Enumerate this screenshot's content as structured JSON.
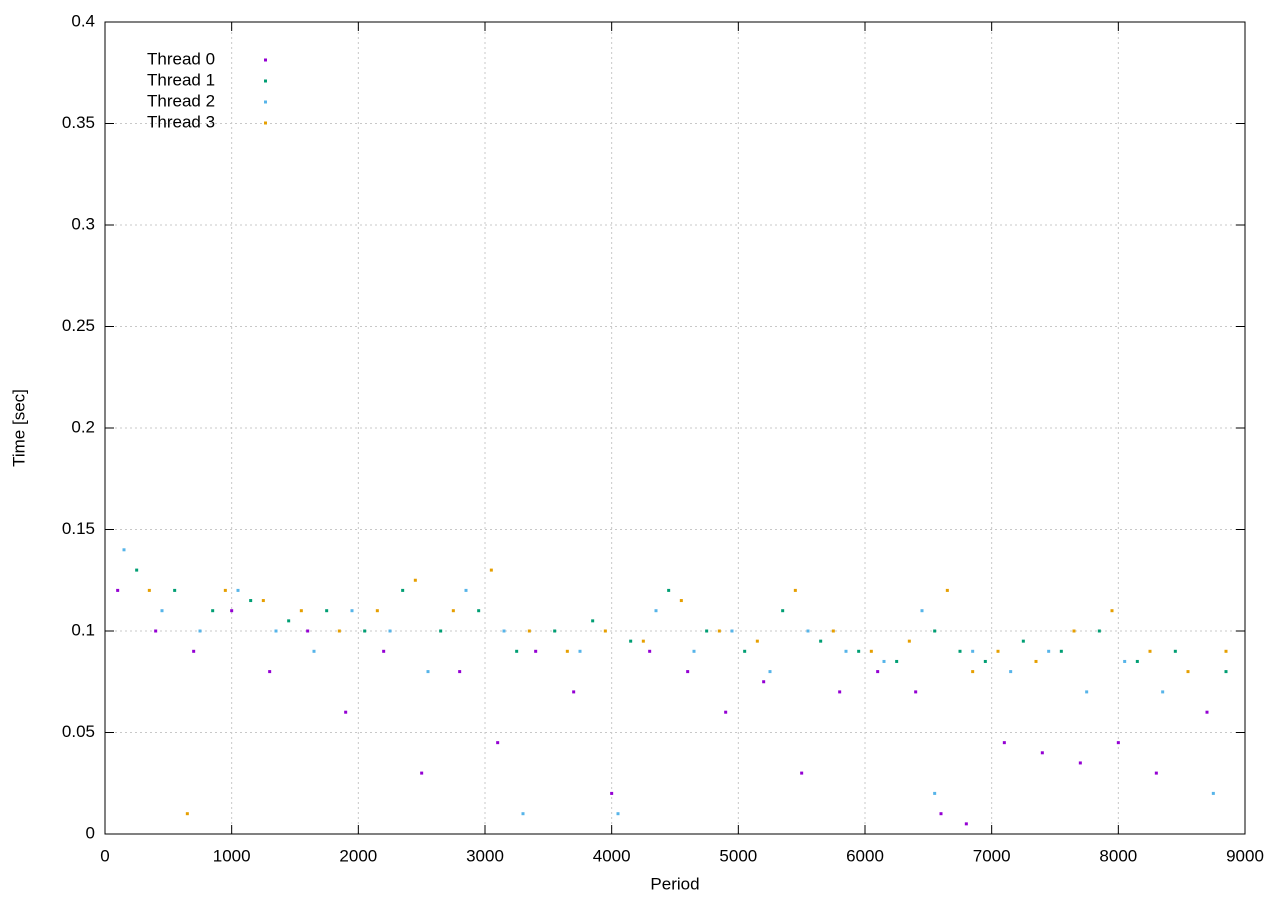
{
  "chart_data": {
    "type": "scatter",
    "x_label": "Period",
    "y_label": "Time [sec]",
    "xlim": [
      0,
      9000
    ],
    "xticks": [
      0,
      1000,
      2000,
      3000,
      4000,
      5000,
      6000,
      7000,
      8000,
      9000
    ],
    "ylim": [
      0,
      0.4
    ],
    "yticks": [
      0,
      0.05,
      0.1,
      0.15,
      0.2,
      0.25,
      0.3,
      0.35,
      0.4
    ],
    "grid": true,
    "legend": "upper-left",
    "series": [
      {
        "name": "Thread 0",
        "color": "#9400d3",
        "x": [
          100,
          400,
          700,
          1000,
          1300,
          1600,
          1900,
          2200,
          2500,
          2800,
          3100,
          3400,
          3700,
          4000,
          4300,
          4600,
          4900,
          5200,
          5500,
          5800,
          6100,
          6400,
          6600,
          6800,
          7100,
          7400,
          7700,
          8000,
          8300,
          8700
        ],
        "values": [
          0.12,
          0.1,
          0.09,
          0.11,
          0.08,
          0.1,
          0.06,
          0.09,
          0.03,
          0.08,
          0.045,
          0.09,
          0.07,
          0.02,
          0.09,
          0.08,
          0.06,
          0.075,
          0.03,
          0.07,
          0.08,
          0.07,
          0.01,
          0.005,
          0.045,
          0.04,
          0.035,
          0.045,
          0.03,
          0.06
        ]
      },
      {
        "name": "Thread 1",
        "color": "#009e73",
        "x": [
          250,
          550,
          850,
          1150,
          1450,
          1750,
          2050,
          2350,
          2650,
          2950,
          3250,
          3550,
          3850,
          4150,
          4450,
          4750,
          5050,
          5350,
          5650,
          5950,
          6250,
          6550,
          6750,
          6950,
          7250,
          7550,
          7850,
          8150,
          8450,
          8850
        ],
        "values": [
          0.13,
          0.12,
          0.11,
          0.115,
          0.105,
          0.11,
          0.1,
          0.12,
          0.1,
          0.11,
          0.09,
          0.1,
          0.105,
          0.095,
          0.12,
          0.1,
          0.09,
          0.11,
          0.095,
          0.09,
          0.085,
          0.1,
          0.09,
          0.085,
          0.095,
          0.09,
          0.1,
          0.085,
          0.09,
          0.08
        ]
      },
      {
        "name": "Thread 2",
        "color": "#56b4e9",
        "x": [
          150,
          450,
          750,
          1050,
          1350,
          1650,
          1950,
          2250,
          2550,
          2850,
          3150,
          3300,
          3750,
          4050,
          4350,
          4650,
          4950,
          5250,
          5550,
          5850,
          6150,
          6450,
          6550,
          6850,
          7150,
          7450,
          7750,
          8050,
          8350,
          8750
        ],
        "values": [
          0.14,
          0.11,
          0.1,
          0.12,
          0.1,
          0.09,
          0.11,
          0.1,
          0.08,
          0.12,
          0.1,
          0.01,
          0.09,
          0.01,
          0.11,
          0.09,
          0.1,
          0.08,
          0.1,
          0.09,
          0.085,
          0.11,
          0.02,
          0.09,
          0.08,
          0.09,
          0.07,
          0.085,
          0.07,
          0.02
        ]
      },
      {
        "name": "Thread 3",
        "color": "#e69f00",
        "x": [
          350,
          650,
          950,
          1250,
          1550,
          1850,
          2150,
          2450,
          2750,
          3050,
          3350,
          3650,
          3950,
          4250,
          4550,
          4850,
          5150,
          5450,
          5750,
          6050,
          6350,
          6650,
          6850,
          7050,
          7350,
          7650,
          7950,
          8250,
          8550,
          8850
        ],
        "values": [
          0.12,
          0.01,
          0.12,
          0.115,
          0.11,
          0.1,
          0.11,
          0.125,
          0.11,
          0.13,
          0.1,
          0.09,
          0.1,
          0.095,
          0.115,
          0.1,
          0.095,
          0.12,
          0.1,
          0.09,
          0.095,
          0.12,
          0.08,
          0.09,
          0.085,
          0.1,
          0.11,
          0.09,
          0.08,
          0.09
        ]
      }
    ]
  }
}
